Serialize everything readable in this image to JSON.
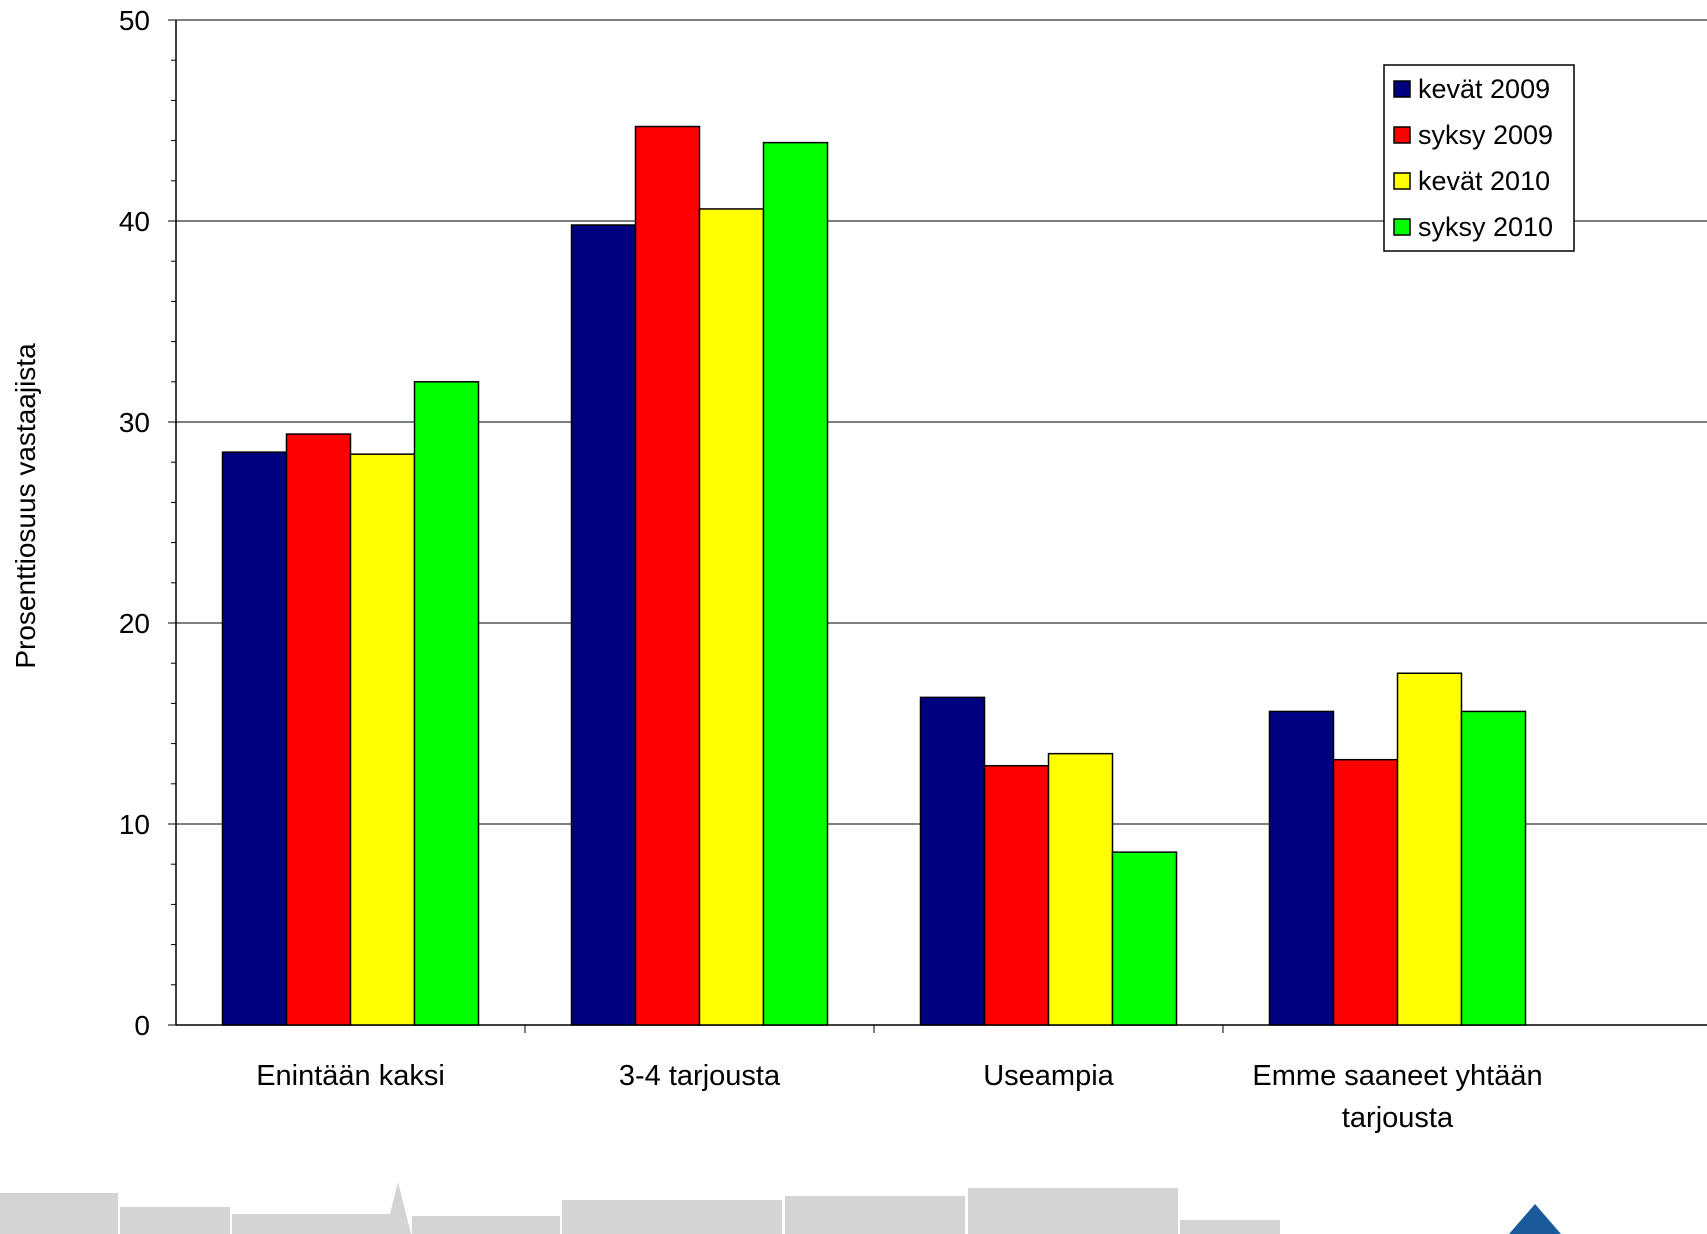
{
  "chart_data": {
    "type": "bar",
    "title": "",
    "xlabel": "",
    "ylabel": "Prosenttiosuus vastaajista",
    "ylim": [
      0,
      50
    ],
    "yticks": [
      0,
      10,
      20,
      30,
      40,
      50
    ],
    "y_minor_step": 2,
    "grid": true,
    "legend_position": "top-right",
    "categories": [
      "Enintään kaksi",
      "3-4 tarjousta",
      "Useampia",
      "Emme saaneet yhtään tarjousta"
    ],
    "category_label_lines": [
      [
        "Enintään kaksi"
      ],
      [
        "3-4 tarjousta"
      ],
      [
        "Useampia"
      ],
      [
        "Emme saaneet yhtään",
        "tarjousta"
      ]
    ],
    "series": [
      {
        "name": "kevät 2009",
        "color": "#000080",
        "values": [
          28.5,
          39.8,
          16.3,
          15.6
        ]
      },
      {
        "name": "syksy 2009",
        "color": "#ff0000",
        "values": [
          29.4,
          44.7,
          12.9,
          13.2
        ]
      },
      {
        "name": "kevät 2010",
        "color": "#ffff00",
        "values": [
          28.4,
          40.6,
          13.5,
          17.5
        ]
      },
      {
        "name": "syksy 2010",
        "color": "#00ff00",
        "values": [
          32.0,
          43.9,
          8.6,
          15.6
        ]
      }
    ]
  }
}
